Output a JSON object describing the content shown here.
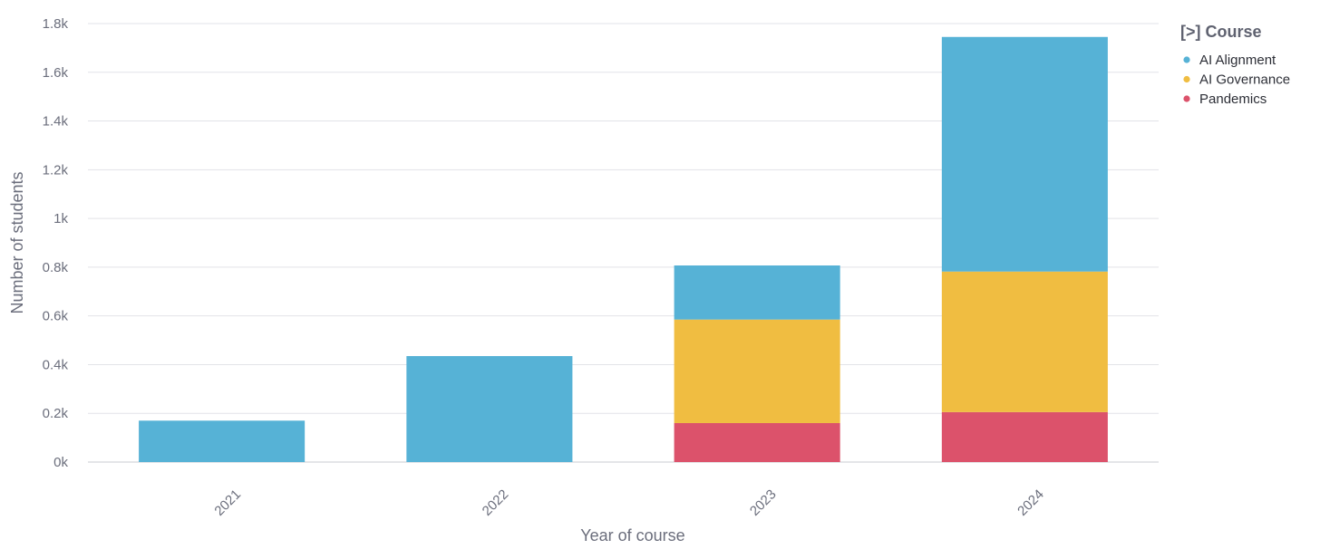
{
  "chart_data": {
    "type": "bar",
    "stacked": true,
    "categories": [
      "2021",
      "2022",
      "2023",
      "2024"
    ],
    "series": [
      {
        "name": "Pandemics",
        "color": "#dc526b",
        "values": [
          0,
          0,
          160,
          205
        ]
      },
      {
        "name": "AI Governance",
        "color": "#f0bd41",
        "values": [
          0,
          0,
          425,
          577
        ]
      },
      {
        "name": "AI Alignment",
        "color": "#56b2d6",
        "values": [
          170,
          435,
          222,
          963
        ]
      }
    ],
    "xlabel": "Year of course",
    "ylabel": "Number of students",
    "ylim": [
      0,
      1800
    ],
    "yticks": [
      "0k",
      "0.2k",
      "0.4k",
      "0.6k",
      "0.8k",
      "1k",
      "1.2k",
      "1.4k",
      "1.6k",
      "1.8k"
    ],
    "grid": true,
    "legend": {
      "title": "[>] Course",
      "position": "top-right",
      "items": [
        "AI Alignment",
        "AI Governance",
        "Pandemics"
      ]
    }
  }
}
